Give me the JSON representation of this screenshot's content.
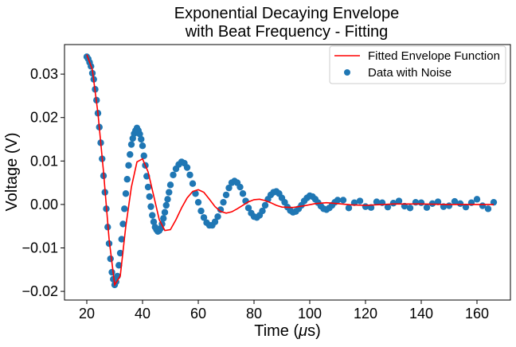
{
  "chart_data": {
    "type": "scatter",
    "title_lines": [
      "Exponential Decaying Envelope",
      "with Beat Frequency - Fitting"
    ],
    "xlabel_main": "Time (",
    "xlabel_mu": "μ",
    "xlabel_unit": "s)",
    "ylabel": "Voltage (V)",
    "xlim": [
      12,
      172
    ],
    "ylim": [
      -0.022,
      0.0368
    ],
    "x_ticks": [
      20,
      40,
      60,
      80,
      100,
      120,
      140,
      160
    ],
    "x_tick_labels": [
      "20",
      "40",
      "60",
      "80",
      "100",
      "120",
      "140",
      "160"
    ],
    "y_ticks": [
      -0.02,
      -0.01,
      0.0,
      0.01,
      0.02,
      0.03
    ],
    "y_tick_labels": [
      "−0.02",
      "−0.01",
      "0.00",
      "0.01",
      "0.02",
      "0.03"
    ],
    "grid": false,
    "legend_position": "top-right",
    "colors": {
      "scatter": "#1f77b4",
      "fit": "#ff0000"
    },
    "legend": [
      "Fitted Envelope Function",
      "Data with Noise"
    ],
    "series": [
      {
        "name": "Data with Noise",
        "kind": "scatter",
        "x": [
          20.0,
          20.5,
          21.0,
          21.5,
          22.0,
          22.5,
          23.0,
          23.5,
          24.0,
          24.5,
          25.0,
          25.5,
          26.0,
          26.5,
          27.0,
          27.5,
          28.0,
          28.5,
          29.0,
          29.5,
          30.0,
          30.5,
          31.0,
          31.5,
          32.0,
          32.5,
          33.0,
          33.5,
          34.0,
          34.5,
          35.0,
          35.5,
          36.0,
          36.5,
          37.0,
          37.5,
          38.0,
          38.5,
          39.0,
          39.5,
          40.0,
          40.5,
          41.0,
          41.5,
          42.0,
          42.5,
          43.0,
          43.5,
          44.0,
          44.5,
          45.0,
          45.5,
          46.0,
          46.5,
          47.0,
          47.5,
          48.0,
          48.5,
          49.0,
          49.5,
          50.0,
          51.0,
          52.0,
          53.0,
          54.0,
          55.0,
          56.0,
          57.0,
          58.0,
          59.0,
          60.0,
          61.0,
          62.0,
          63.0,
          64.0,
          65.0,
          66.0,
          67.0,
          68.0,
          69.0,
          70.0,
          71.0,
          72.0,
          73.0,
          74.0,
          75.0,
          76.0,
          77.0,
          78.0,
          79.0,
          80.0,
          81.0,
          82.0,
          83.0,
          84.0,
          85.0,
          86.0,
          87.0,
          88.0,
          89.0,
          90.0,
          91.0,
          92.0,
          93.0,
          94.0,
          95.0,
          96.0,
          97.0,
          98.0,
          99.0,
          100.0,
          101.0,
          102.0,
          103.0,
          104.0,
          105.0,
          106.0,
          107.0,
          108.0,
          109.0,
          110.0,
          112.0,
          114.0,
          116.0,
          118.0,
          120.0,
          122.0,
          124.0,
          126.0,
          128.0,
          130.0,
          132.0,
          134.0,
          136.0,
          138.0,
          140.0,
          142.0,
          144.0,
          146.0,
          148.0,
          150.0,
          152.0,
          154.0,
          156.0,
          158.0,
          160.0,
          162.0,
          164.0,
          166.0
        ],
        "y": [
          0.034,
          0.0335,
          0.0327,
          0.0318,
          0.0302,
          0.0288,
          0.0265,
          0.024,
          0.021,
          0.0178,
          0.0142,
          0.0105,
          0.0066,
          0.0028,
          -0.001,
          -0.0052,
          -0.009,
          -0.0125,
          -0.0156,
          -0.0172,
          -0.0185,
          -0.0178,
          -0.0165,
          -0.014,
          -0.0112,
          -0.008,
          -0.0045,
          -0.001,
          0.0025,
          0.0058,
          0.009,
          0.0115,
          0.0138,
          0.0152,
          0.0163,
          0.017,
          0.0176,
          0.017,
          0.0162,
          0.015,
          0.0135,
          0.0112,
          0.009,
          0.0065,
          0.004,
          0.0018,
          -0.0005,
          -0.0025,
          -0.004,
          -0.0052,
          -0.0058,
          -0.0062,
          -0.006,
          -0.0055,
          -0.0045,
          -0.0032,
          -0.0018,
          -0.0002,
          0.0012,
          0.0028,
          0.0045,
          0.0068,
          0.0082,
          0.0092,
          0.0098,
          0.0095,
          0.0085,
          0.0068,
          0.0048,
          0.0025,
          0.0005,
          -0.0015,
          -0.003,
          -0.0042,
          -0.0048,
          -0.0048,
          -0.004,
          -0.0028,
          -0.0012,
          0.0005,
          0.0022,
          0.0038,
          0.005,
          0.0054,
          0.005,
          0.004,
          0.0025,
          0.0008,
          -0.0008,
          -0.002,
          -0.0028,
          -0.003,
          -0.0025,
          -0.0015,
          -0.0002,
          0.0012,
          0.0022,
          0.0028,
          0.003,
          0.0025,
          0.0015,
          0.0005,
          -0.0006,
          -0.0014,
          -0.0018,
          -0.0016,
          -0.001,
          -0.0002,
          0.0008,
          0.0015,
          0.002,
          0.0018,
          0.0012,
          0.0004,
          -0.0004,
          -0.001,
          -0.0012,
          -0.0008,
          -0.0002,
          0.0005,
          0.001,
          0.001,
          -0.0008,
          0.0004,
          0.0008,
          -0.0005,
          -0.0007,
          0.0006,
          0.0004,
          -0.0006,
          0.0003,
          0.0008,
          -0.0004,
          -0.0008,
          0.0005,
          0.0004,
          -0.0007,
          0.0002,
          0.0006,
          -0.0005,
          -0.0003,
          0.0007,
          0.0002,
          -0.0006,
          0.0004,
          0.0012,
          -0.0003,
          -0.001,
          0.0005
        ]
      },
      {
        "name": "Fitted Envelope Function",
        "kind": "line",
        "x": [
          20.0,
          22.0,
          24.0,
          26.0,
          28.0,
          30.0,
          32.0,
          34.0,
          36.0,
          38.0,
          40.0,
          42.0,
          44.0,
          46.0,
          48.0,
          50.0,
          52.0,
          54.0,
          56.0,
          58.0,
          60.0,
          62.0,
          64.0,
          66.0,
          68.0,
          70.0,
          72.0,
          74.0,
          76.0,
          78.0,
          80.0,
          82.0,
          84.0,
          86.0,
          88.0,
          90.0,
          94.0,
          98.0,
          102.0,
          106.0,
          110.0,
          115.0,
          120.0,
          130.0,
          140.0,
          150.0,
          160.0,
          166.0
        ],
        "y": [
          0.0345,
          0.031,
          0.021,
          0.0075,
          -0.008,
          -0.0185,
          -0.0165,
          -0.005,
          0.004,
          0.0098,
          0.0105,
          0.0075,
          0.002,
          -0.0035,
          -0.006,
          -0.0058,
          -0.0035,
          -0.0008,
          0.0015,
          0.003,
          0.0034,
          0.0028,
          0.0012,
          -0.0005,
          -0.0016,
          -0.002,
          -0.0017,
          -0.001,
          -0.0002,
          0.0006,
          0.0011,
          0.0012,
          0.0009,
          0.0004,
          -0.0002,
          -0.0006,
          -0.0007,
          -0.0003,
          0.0002,
          0.0004,
          0.0002,
          -0.0001,
          -0.0002,
          0.0001,
          0.0001,
          0.0,
          0.0,
          0.0
        ]
      }
    ]
  }
}
